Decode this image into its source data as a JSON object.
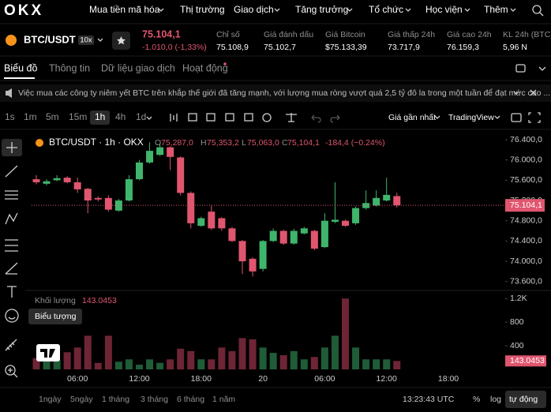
{
  "logo": "OKX",
  "menu": [
    "Mua tiền mã hóa",
    "Thị trường",
    "Giao dịch",
    "Tăng trưởng",
    "Tổ chức",
    "Học viện",
    "Thêm"
  ],
  "ticker": {
    "pair": "BTC/USDT",
    "leverage": "10x",
    "price": "75.104,1",
    "change": "-1.010,0 (-1,33%)"
  },
  "stats": [
    {
      "label": "Chỉ số",
      "value": "75.108,9"
    },
    {
      "label": "Giá đánh dấu",
      "value": "75.102,7"
    },
    {
      "label": "Giá Bitcoin",
      "value": "$75.133,39"
    },
    {
      "label": "Giá thấp 24h",
      "value": "73.717,9"
    },
    {
      "label": "Giá cao 24h",
      "value": "76.159,3"
    },
    {
      "label": "KL 24h (BTC)",
      "value": "5,96 N"
    }
  ],
  "tabs": [
    "Biểu đồ",
    "Thông tin",
    "Dữ liệu giao dịch",
    "Hoạt động"
  ],
  "announcement": "Việc mua các công ty niêm yết BTC trên khắp thế giới đã tăng mạnh, với lượng mua ròng vượt quá 2,5 tỷ đô la trong một tuần để đạt mức cao ...",
  "intervals": [
    "1s",
    "1m",
    "5m",
    "15m",
    "1h",
    "4h",
    "1d"
  ],
  "price_source": "Giá gần nhất",
  "chart_style": "TradingView",
  "tooltip": "Biểu tượng",
  "ranges": [
    "1ngày",
    "5ngày",
    "1 tháng",
    "3 tháng",
    "6 tháng",
    "1 năm"
  ],
  "clock": "13:23:43 UTC",
  "scale_buttons": [
    "%",
    "log",
    "tự động"
  ],
  "chart_data": [
    {
      "type": "candlestick",
      "title": "BTC/USDT · 1h · OKX",
      "ohlc_legend": [
        {
          "key": "O",
          "value": "75,287,0"
        },
        {
          "key": "H",
          "value": "75,353,2"
        },
        {
          "key": "L",
          "value": "75,063,0"
        },
        {
          "key": "C",
          "value": "75,104,1"
        }
      ],
      "change": "-184,4 (−0.24%)",
      "categories": [
        null,
        null,
        null,
        null,
        "06:00",
        null,
        null,
        null,
        null,
        null,
        "12:00",
        null,
        null,
        null,
        null,
        null,
        "18:00",
        null,
        null,
        null,
        null,
        null,
        "20",
        null,
        null,
        null,
        null,
        null,
        "06:00",
        null,
        null,
        null,
        null,
        null,
        "12:00",
        null,
        null,
        null,
        null,
        null,
        "18:00"
      ],
      "open": [
        75620,
        75530,
        75600,
        75650,
        75560,
        75430,
        75250,
        75250,
        75000,
        75200,
        75620,
        75950,
        76100,
        76250,
        76050,
        75350,
        74700,
        74980,
        74850,
        74650,
        74400,
        74050,
        73850,
        74400,
        74600,
        74350,
        74550,
        74600,
        74280,
        74780,
        74800,
        74750,
        75050,
        75100,
        75200,
        75287.0,
        null,
        null,
        null,
        null,
        null
      ],
      "high": [
        75700,
        75620,
        75700,
        75680,
        75650,
        75450,
        75280,
        75300,
        75230,
        75700,
        76000,
        76350,
        76320,
        76270,
        76070,
        75380,
        74880,
        75100,
        74870,
        74680,
        74420,
        74080,
        74420,
        74650,
        74620,
        74640,
        74680,
        74620,
        74950,
        75560,
        74820,
        75080,
        75400,
        75400,
        75650,
        75353.2,
        null,
        null,
        null,
        null,
        null
      ],
      "low": [
        75520,
        75500,
        75580,
        75540,
        75350,
        74950,
        75180,
        74980,
        74980,
        75180,
        75600,
        75930,
        76080,
        75800,
        75300,
        74650,
        74680,
        74620,
        74600,
        74380,
        73750,
        73700,
        73800,
        74380,
        74320,
        74330,
        74530,
        74220,
        74260,
        74750,
        74680,
        74720,
        75020,
        75080,
        75180,
        75063.0,
        null,
        null,
        null,
        null,
        null
      ],
      "close": [
        75560,
        75580,
        75640,
        75560,
        75420,
        75200,
        75220,
        75020,
        75200,
        75620,
        75950,
        76180,
        76250,
        76060,
        75350,
        74750,
        74850,
        74650,
        74650,
        74400,
        74000,
        73800,
        74400,
        74600,
        74350,
        74600,
        74650,
        74250,
        74800,
        74820,
        74700,
        75050,
        75150,
        75250,
        75310,
        75104.1,
        null,
        null,
        null,
        null,
        null
      ],
      "up_color": "#3fb56c",
      "down_color": "#e0566f",
      "ylim": [
        73440,
        76540
      ],
      "yticks": [
        {
          "value": 76400,
          "label": "76.400,0"
        },
        {
          "value": 76000,
          "label": "76.000,0"
        },
        {
          "value": 75600,
          "label": "75.600,0"
        },
        {
          "value": 75200,
          "label": "75.200,0"
        },
        {
          "value": 74800,
          "label": "74.800,0"
        },
        {
          "value": 74400,
          "label": "74.400,0"
        },
        {
          "value": 74000,
          "label": "74.000,0"
        },
        {
          "value": 73600,
          "label": "73.600,0"
        }
      ],
      "last_price": {
        "value": 75104.1,
        "label": "75.104,1"
      },
      "grid": false
    },
    {
      "type": "bar",
      "title": "Khối lượng",
      "values": [
        190,
        170,
        170,
        290,
        370,
        570,
        110,
        570,
        130,
        170,
        80,
        170,
        110,
        170,
        350,
        310,
        170,
        170,
        370,
        310,
        530,
        510,
        370,
        280,
        240,
        310,
        170,
        210,
        370,
        570,
        1200,
        370,
        170,
        170,
        170,
        143.0453,
        null,
        null,
        null,
        null,
        null
      ],
      "up_color": "#1f5c37",
      "down_color": "#6e2536",
      "ylim": [
        0,
        1310
      ],
      "yticks": [
        {
          "value": 1200,
          "label": "1.2K"
        },
        800,
        400
      ],
      "last_value": {
        "value": 143.0453,
        "label": "143.0453"
      },
      "grid": false
    }
  ]
}
